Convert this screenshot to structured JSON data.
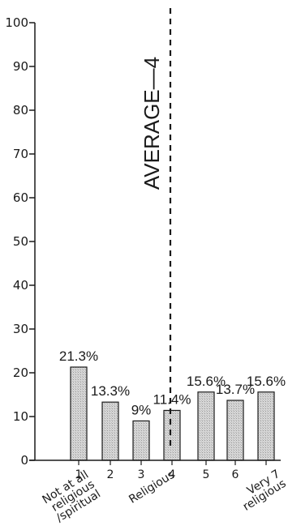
{
  "chart_data": {
    "type": "bar",
    "categories": [
      "1",
      "2",
      "3",
      "4",
      "5",
      "6",
      "7"
    ],
    "values": [
      21.3,
      13.3,
      9,
      11.4,
      15.6,
      13.7,
      15.6
    ],
    "data_labels": [
      "21.3%",
      "13.3%",
      "9%",
      "11.4%",
      "15.6%",
      "13.7%",
      "15.6%"
    ],
    "ylim": [
      0,
      100
    ],
    "yticks": [
      0,
      10,
      20,
      30,
      40,
      50,
      60,
      70,
      80,
      90,
      100
    ],
    "anchor_labels": [
      {
        "category": "1",
        "text": "Not at all religious /spiritual"
      },
      {
        "category": "4",
        "text": "Religious"
      },
      {
        "category": "7",
        "text": "Very religious"
      }
    ],
    "average": {
      "value": 4,
      "label": "AVERAGE—4"
    },
    "bar_color": "#d6d6d6",
    "bar_stroke": "#1a1a1a",
    "grid": false,
    "legend": "none"
  }
}
